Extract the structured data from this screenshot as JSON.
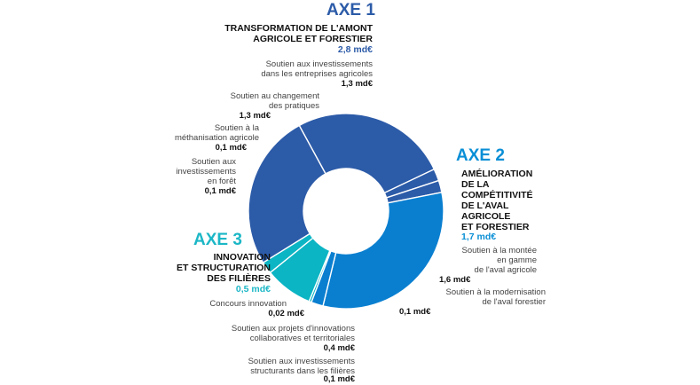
{
  "colors": {
    "axe1": "#2c5ba8",
    "axe2": "#0a7fd0",
    "axe3": "#0bb5c4",
    "axe1_title": "#2c5ba8",
    "axe2_title": "#0a8fd6",
    "axe3_title": "#1cb7c6"
  },
  "axe1": {
    "title": "AXE 1",
    "heading": "TRANSFORMATION DE L'AMONT\nAGRICOLE ET FORESTIER",
    "amount": "2,8 md€",
    "items": [
      {
        "label": "Soutien aux investissements\ndans les entreprises agricoles",
        "amount": "1,3 md€"
      },
      {
        "label": "Soutien au changement\ndes pratiques",
        "amount": "1,3 md€"
      },
      {
        "label": "Soutien à la\nméthanisation agricole",
        "amount": "0,1 md€"
      },
      {
        "label": "Soutien aux\ninvestissements\nen forêt",
        "amount": "0,1 md€"
      }
    ]
  },
  "axe2": {
    "title": "AXE 2",
    "heading": "AMÉLIORATION\nDE LA\nCOMPÉTITIVITÉ\nDE L'AVAL\nAGRICOLE\nET FORESTIER",
    "amount": "1,7 md€",
    "items": [
      {
        "label": "Soutien à la montée\nen gamme\nde l'aval agricole",
        "amount": "1,6 md€"
      },
      {
        "label": "Soutien à la modernisation\nde l'aval forestier",
        "amount": "0,1 md€"
      }
    ]
  },
  "axe3": {
    "title": "AXE 3",
    "heading": "INNOVATION\nET STRUCTURATION\nDES FILIÈRES",
    "amount": "0,5 md€",
    "items": [
      {
        "label": "Concours innovation",
        "amount": "0,02 md€"
      },
      {
        "label": "Soutien aux projets d'innovations\ncollaboratives et territoriales",
        "amount": "0,4 md€"
      },
      {
        "label": "Soutien aux investissements\nstructurants dans les filières",
        "amount": "0,1 md€"
      }
    ]
  },
  "chart_data": {
    "type": "pie",
    "donut": true,
    "unit": "md€",
    "slices": [
      {
        "label": "Soutien aux investissements dans les entreprises agricoles",
        "group": "AXE 1",
        "value": 1.3,
        "color": "#2c5ba8"
      },
      {
        "label": "Soutien à la méthanisation agricole",
        "group": "AXE 1",
        "value": 0.1,
        "color": "#2c5ba8"
      },
      {
        "label": "Soutien aux investissements en forêt",
        "group": "AXE 1",
        "value": 0.1,
        "color": "#2c5ba8"
      },
      {
        "label": "Soutien à la montée en gamme de l'aval agricole",
        "group": "AXE 2",
        "value": 1.6,
        "color": "#0a7fd0"
      },
      {
        "label": "Soutien à la modernisation de l'aval forestier",
        "group": "AXE 2",
        "value": 0.1,
        "color": "#0a7fd0"
      },
      {
        "label": "Concours innovation",
        "group": "AXE 3",
        "value": 0.02,
        "color": "#0bb5c4"
      },
      {
        "label": "Soutien aux projets d'innovations collaboratives et territoriales",
        "group": "AXE 3",
        "value": 0.4,
        "color": "#0bb5c4"
      },
      {
        "label": "Soutien aux investissements structurants dans les filières",
        "group": "AXE 3",
        "value": 0.1,
        "color": "#0bb5c4"
      },
      {
        "label": "Soutien au changement des pratiques",
        "group": "AXE 1",
        "value": 1.3,
        "color": "#2c5ba8"
      }
    ]
  }
}
